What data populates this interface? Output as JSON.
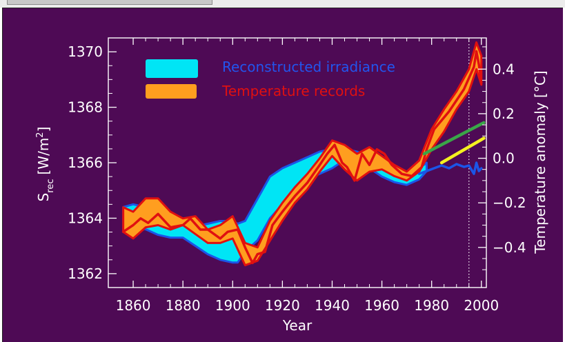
{
  "chart_data": {
    "type": "area",
    "xlabel": "Year",
    "ylabel": "S",
    "ylabel_sub": "rec",
    "ylabel_unit": "[W/m",
    "ylabel_sup": "2",
    "ylabel_end": "]",
    "y2label": "Temperature anomaly [°C]",
    "xlim": [
      1850,
      2002
    ],
    "ylim": [
      1361.5,
      1370.5
    ],
    "y2lim": [
      -0.58,
      0.54
    ],
    "x_ticks": [
      1860,
      1880,
      1900,
      1920,
      1940,
      1960,
      1980,
      2000
    ],
    "y_ticks": [
      1362,
      1364,
      1366,
      1368,
      1370
    ],
    "y2_ticks": [
      -0.4,
      -0.2,
      0.0,
      0.2,
      0.4
    ],
    "y2_tick_labels": [
      "−0.4",
      "−0.2",
      "0.0",
      "0.2",
      "0.4"
    ],
    "legend_position": "top-left",
    "legend": [
      {
        "label": "Reconstructed irradiance",
        "swatch": "#00e5f5",
        "text_color": "#2255ee"
      },
      {
        "label": "Temperature records",
        "swatch": "#ff9e1f",
        "text_color": "#e01010"
      }
    ],
    "reference_line_year": 1995,
    "series": [
      {
        "name": "Reconstructed irradiance",
        "kind": "band",
        "axis": "left",
        "fill": "#00e5f5",
        "edge": "#1b55e8",
        "x": [
          1856,
          1860,
          1865,
          1870,
          1875,
          1880,
          1885,
          1890,
          1895,
          1900,
          1902,
          1905,
          1910,
          1915,
          1920,
          1925,
          1930,
          1935,
          1940,
          1945,
          1950,
          1955,
          1960,
          1965,
          1970,
          1975,
          1978
        ],
        "upper": [
          1364.4,
          1364.5,
          1364.4,
          1364.4,
          1364.2,
          1363.8,
          1363.7,
          1363.8,
          1363.9,
          1363.9,
          1363.8,
          1363.9,
          1364.7,
          1365.5,
          1365.8,
          1366.0,
          1366.2,
          1366.4,
          1366.5,
          1366.5,
          1366.4,
          1366.2,
          1366.0,
          1365.7,
          1365.6,
          1365.8,
          1366.0
        ],
        "lower": [
          1363.5,
          1363.7,
          1363.6,
          1363.4,
          1363.3,
          1363.3,
          1363.0,
          1362.7,
          1362.5,
          1362.4,
          1362.4,
          1362.8,
          1363.2,
          1364.0,
          1364.5,
          1365.0,
          1365.4,
          1365.6,
          1365.8,
          1366.1,
          1366.0,
          1365.8,
          1365.5,
          1365.3,
          1365.2,
          1365.4,
          1365.7
        ]
      },
      {
        "name": "Temperature records",
        "kind": "band",
        "axis": "right",
        "fill": "#ff9e1f",
        "edge": "#e01010",
        "x": [
          1856,
          1860,
          1865,
          1870,
          1875,
          1880,
          1885,
          1890,
          1895,
          1900,
          1905,
          1910,
          1915,
          1920,
          1925,
          1930,
          1935,
          1940,
          1945,
          1950,
          1955,
          1960,
          1965,
          1970,
          1975,
          1980,
          1985,
          1990,
          1995,
          1998,
          2000
        ],
        "upper": [
          -0.22,
          -0.24,
          -0.18,
          -0.18,
          -0.24,
          -0.27,
          -0.26,
          -0.32,
          -0.3,
          -0.26,
          -0.38,
          -0.4,
          -0.28,
          -0.2,
          -0.13,
          -0.07,
          0.0,
          0.08,
          0.06,
          0.02,
          0.05,
          0.01,
          -0.03,
          -0.06,
          -0.01,
          0.13,
          0.22,
          0.3,
          0.4,
          0.52,
          0.46
        ],
        "lower": [
          -0.33,
          -0.36,
          -0.31,
          -0.3,
          -0.32,
          -0.3,
          -0.34,
          -0.38,
          -0.38,
          -0.36,
          -0.48,
          -0.46,
          -0.37,
          -0.28,
          -0.2,
          -0.14,
          -0.06,
          0.01,
          -0.05,
          -0.1,
          -0.06,
          -0.05,
          -0.08,
          -0.1,
          -0.06,
          0.04,
          0.12,
          0.22,
          0.3,
          0.4,
          0.33
        ]
      },
      {
        "name": "Temperature records (central)",
        "kind": "line",
        "axis": "right",
        "color": "#e01010",
        "x": [
          1856,
          1860,
          1863,
          1866,
          1870,
          1875,
          1880,
          1883,
          1887,
          1890,
          1895,
          1898,
          1902,
          1905,
          1908,
          1910,
          1913,
          1916,
          1920,
          1925,
          1930,
          1935,
          1938,
          1941,
          1944,
          1946,
          1949,
          1952,
          1955,
          1958,
          1961,
          1964,
          1968,
          1972,
          1976,
          1978,
          1981,
          1984,
          1987,
          1990,
          1993,
          1995,
          1997,
          1998,
          1999,
          2000
        ],
        "y": [
          -0.33,
          -0.3,
          -0.27,
          -0.29,
          -0.25,
          -0.31,
          -0.3,
          -0.27,
          -0.32,
          -0.32,
          -0.36,
          -0.33,
          -0.32,
          -0.4,
          -0.47,
          -0.43,
          -0.42,
          -0.3,
          -0.24,
          -0.17,
          -0.11,
          -0.03,
          0.02,
          0.06,
          -0.02,
          -0.04,
          -0.1,
          0.02,
          -0.03,
          0.04,
          0.02,
          -0.03,
          -0.07,
          -0.08,
          -0.04,
          0.04,
          0.13,
          0.17,
          0.21,
          0.26,
          0.31,
          0.36,
          0.41,
          0.48,
          0.42,
          0.34
        ]
      },
      {
        "name": "Reconstructed irradiance (recent)",
        "kind": "line",
        "axis": "left",
        "color": "#1b55e8",
        "x": [
          1975,
          1978,
          1981,
          1984,
          1987,
          1990,
          1993,
          1995,
          1997,
          1998,
          1999,
          2000
        ],
        "y": [
          1365.6,
          1365.7,
          1365.8,
          1365.9,
          1365.8,
          1365.95,
          1365.85,
          1365.9,
          1365.6,
          1366.0,
          1365.7,
          1365.8
        ]
      },
      {
        "name": "Trend (green)",
        "kind": "line",
        "axis": "right",
        "color": "#3aa548",
        "x": [
          1977,
          2001
        ],
        "y": [
          0.02,
          0.16
        ]
      },
      {
        "name": "Trend (yellow)",
        "kind": "line",
        "axis": "right",
        "color": "#f4f020",
        "x": [
          1984,
          2001
        ],
        "y": [
          -0.02,
          0.09
        ]
      }
    ]
  }
}
